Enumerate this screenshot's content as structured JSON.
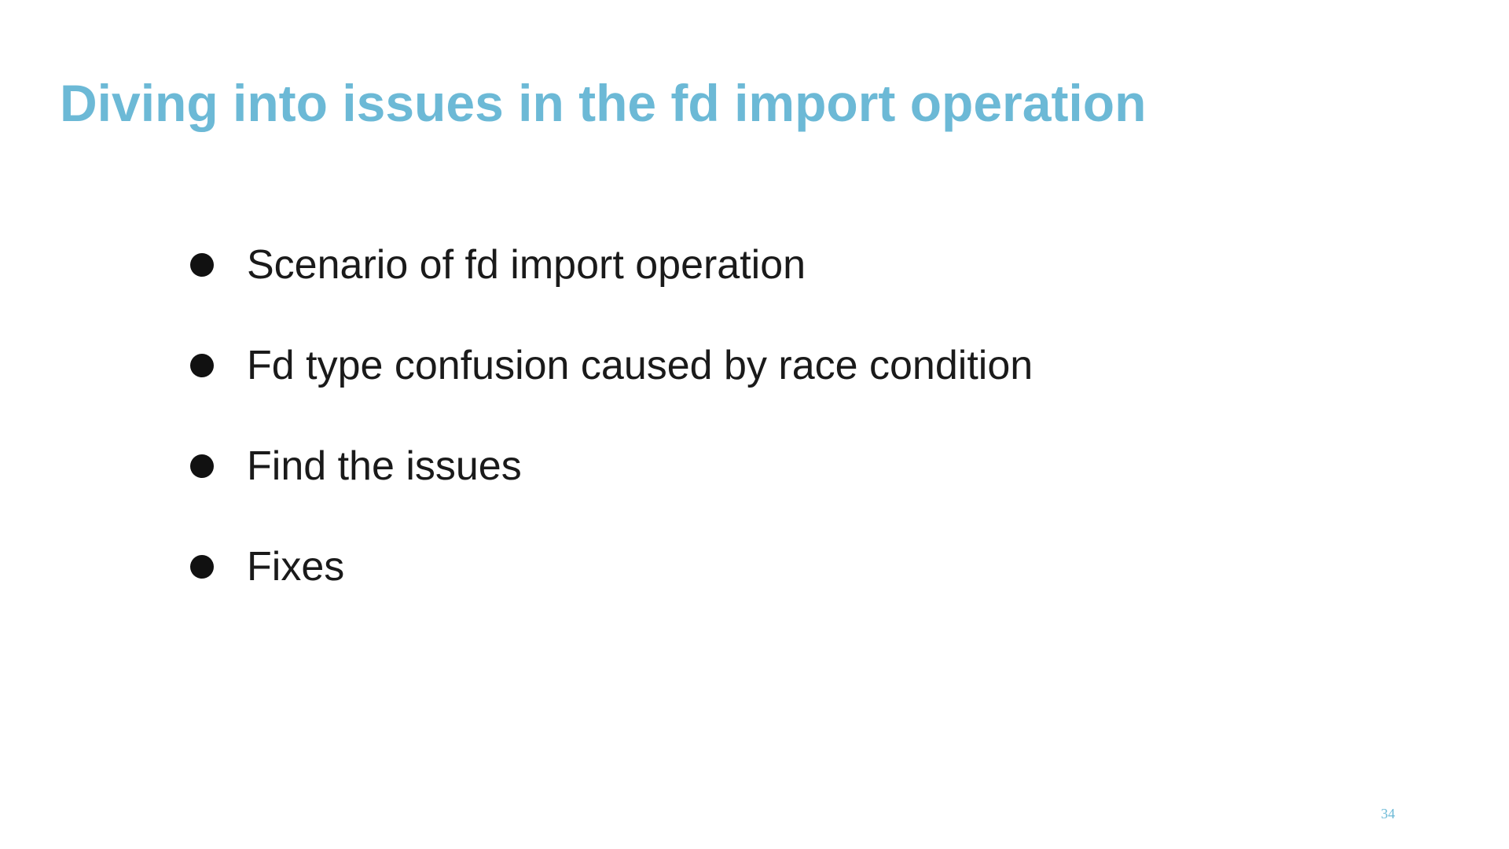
{
  "slide": {
    "title": "Diving into issues in the fd import operation",
    "bullets": [
      "Scenario of fd import operation",
      "Fd type confusion caused by race condition",
      "Find the issues",
      "Fixes"
    ],
    "page_number": "34"
  },
  "colors": {
    "title": "#6cb9d6",
    "body_text": "#1a1a1a",
    "bullet": "#111111",
    "background": "#ffffff"
  }
}
